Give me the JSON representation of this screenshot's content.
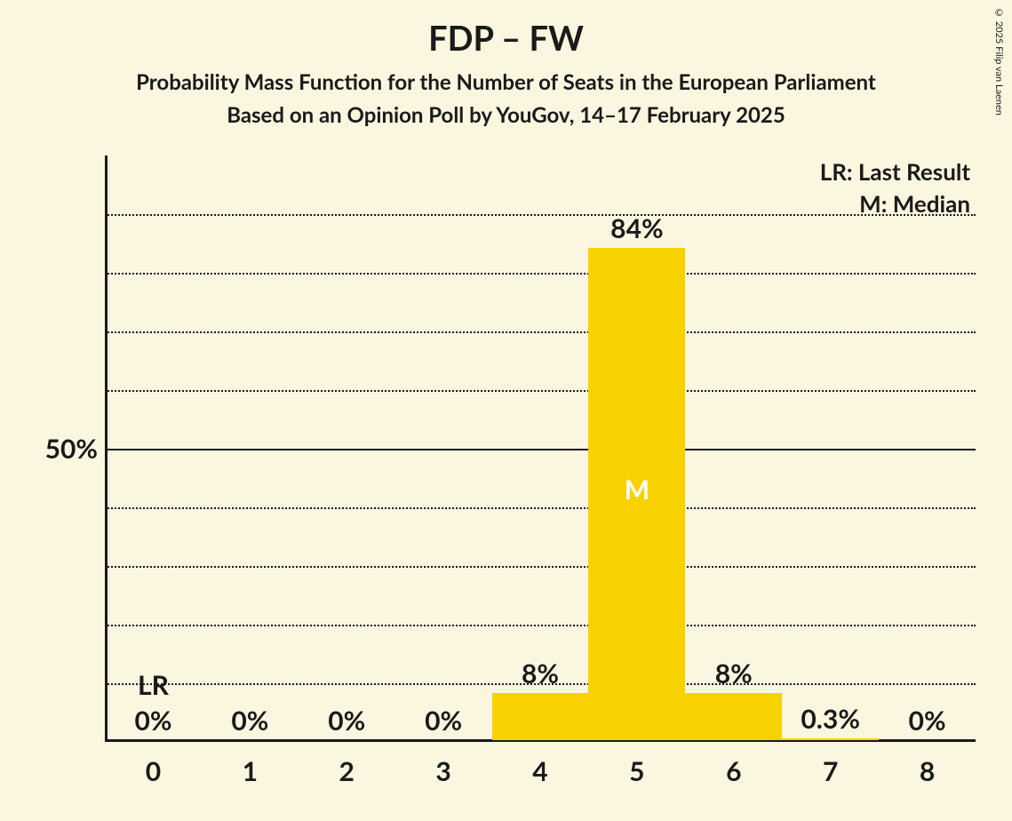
{
  "copyright": "© 2025 Filip van Laenen",
  "title": "FDP – FW",
  "subtitle1": "Probability Mass Function for the Number of Seats in the European Parliament",
  "subtitle2": "Based on an Opinion Poll by YouGov, 14–17 February 2025",
  "legend": {
    "lr": "LR: Last Result",
    "m": "M: Median"
  },
  "chart": {
    "type": "bar",
    "categories": [
      "0",
      "1",
      "2",
      "3",
      "4",
      "5",
      "6",
      "7",
      "8"
    ],
    "values_pct": [
      0,
      0,
      0,
      0,
      8,
      84,
      8,
      0.3,
      0
    ],
    "value_labels": [
      "0%",
      "0%",
      "0%",
      "0%",
      "8%",
      "84%",
      "8%",
      "0.3%",
      "0%"
    ],
    "bar_color": "#f7d200",
    "background_color": "#fbf6e0",
    "grid_color": "#1a1a1a",
    "axis_color": "#1a1a1a",
    "y_max": 100,
    "y_tick_step": 10,
    "y_major_tick": 50,
    "y_major_label": "50%",
    "bar_width_ratio": 1.0,
    "lr_index": 0,
    "lr_text": "LR",
    "median_index": 5,
    "median_text": "M",
    "title_fontsize": 38,
    "subtitle_fontsize": 24,
    "label_fontsize": 30,
    "legend_fontsize": 26,
    "text_color": "#1a1a1a",
    "median_text_color": "#ffffff"
  }
}
